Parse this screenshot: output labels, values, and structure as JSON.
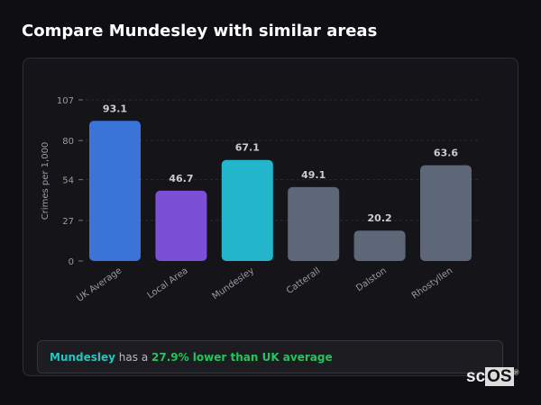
{
  "title": "Compare Mundesley with similar areas",
  "chart_data": {
    "type": "bar",
    "ylabel": "Crimes per 1,000",
    "categories": [
      "UK Average",
      "Local Area",
      "Mundesley",
      "Catterall",
      "Dalston",
      "Rhostyllen"
    ],
    "values": [
      93.1,
      46.7,
      67.1,
      49.1,
      20.2,
      63.6
    ],
    "colors": [
      "#3b74d8",
      "#7b4fd6",
      "#22b5cc",
      "#5d6778",
      "#5d6778",
      "#5d6778"
    ],
    "yticks": [
      0,
      27,
      54,
      80,
      107
    ],
    "ylim": [
      0,
      107
    ],
    "grid": true
  },
  "insight": {
    "area": "Mundesley",
    "middle": " has a ",
    "highlight": "27.9% lower than UK average"
  },
  "watermark": "scOS"
}
